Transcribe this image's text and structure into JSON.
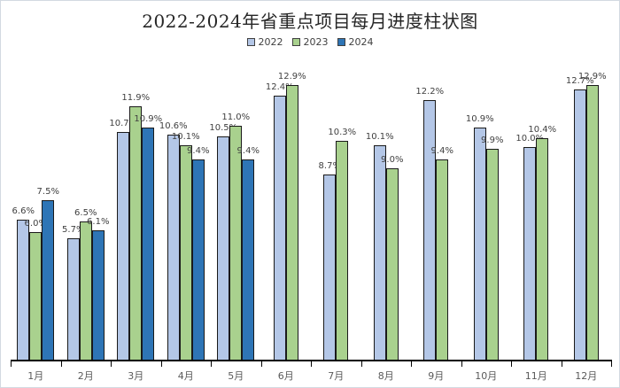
{
  "title": "2022-2024年省重点项目每月进度柱状图",
  "colors": {
    "title_text": "#262626",
    "axis_line": "#000000",
    "axis_label_text": "#595959",
    "data_label_text": "#404040",
    "bar_outline": "#1a1a1a",
    "frame_border": "#d3d9e1",
    "series_2022": "#b4c7e7",
    "series_2023": "#a9d18e",
    "series_2024": "#2e75b6"
  },
  "chart_data": {
    "type": "bar",
    "title": "2022-2024年省重点项目每月进度柱状图",
    "categories": [
      "1月",
      "2月",
      "3月",
      "4月",
      "5月",
      "6月",
      "7月",
      "8月",
      "9月",
      "10月",
      "11月",
      "12月"
    ],
    "series": [
      {
        "name": "2022",
        "color": "#b4c7e7",
        "values": [
          6.6,
          5.7,
          10.7,
          10.6,
          10.5,
          12.4,
          8.7,
          10.1,
          12.2,
          10.9,
          10.0,
          12.7
        ]
      },
      {
        "name": "2023",
        "color": "#a9d18e",
        "values": [
          6.0,
          6.5,
          11.9,
          10.1,
          11.0,
          12.9,
          10.3,
          9.0,
          9.4,
          9.9,
          10.4,
          12.9
        ]
      },
      {
        "name": "2024",
        "color": "#2e75b6",
        "values": [
          7.5,
          6.1,
          10.9,
          9.4,
          9.4,
          null,
          null,
          null,
          null,
          null,
          null,
          null
        ]
      }
    ],
    "value_suffix": "%",
    "data_labels": true,
    "xlabel": "",
    "ylabel": "",
    "ylim": [
      0,
      13
    ],
    "y_axis_visible": false,
    "grid": false,
    "legend_position": "top"
  }
}
